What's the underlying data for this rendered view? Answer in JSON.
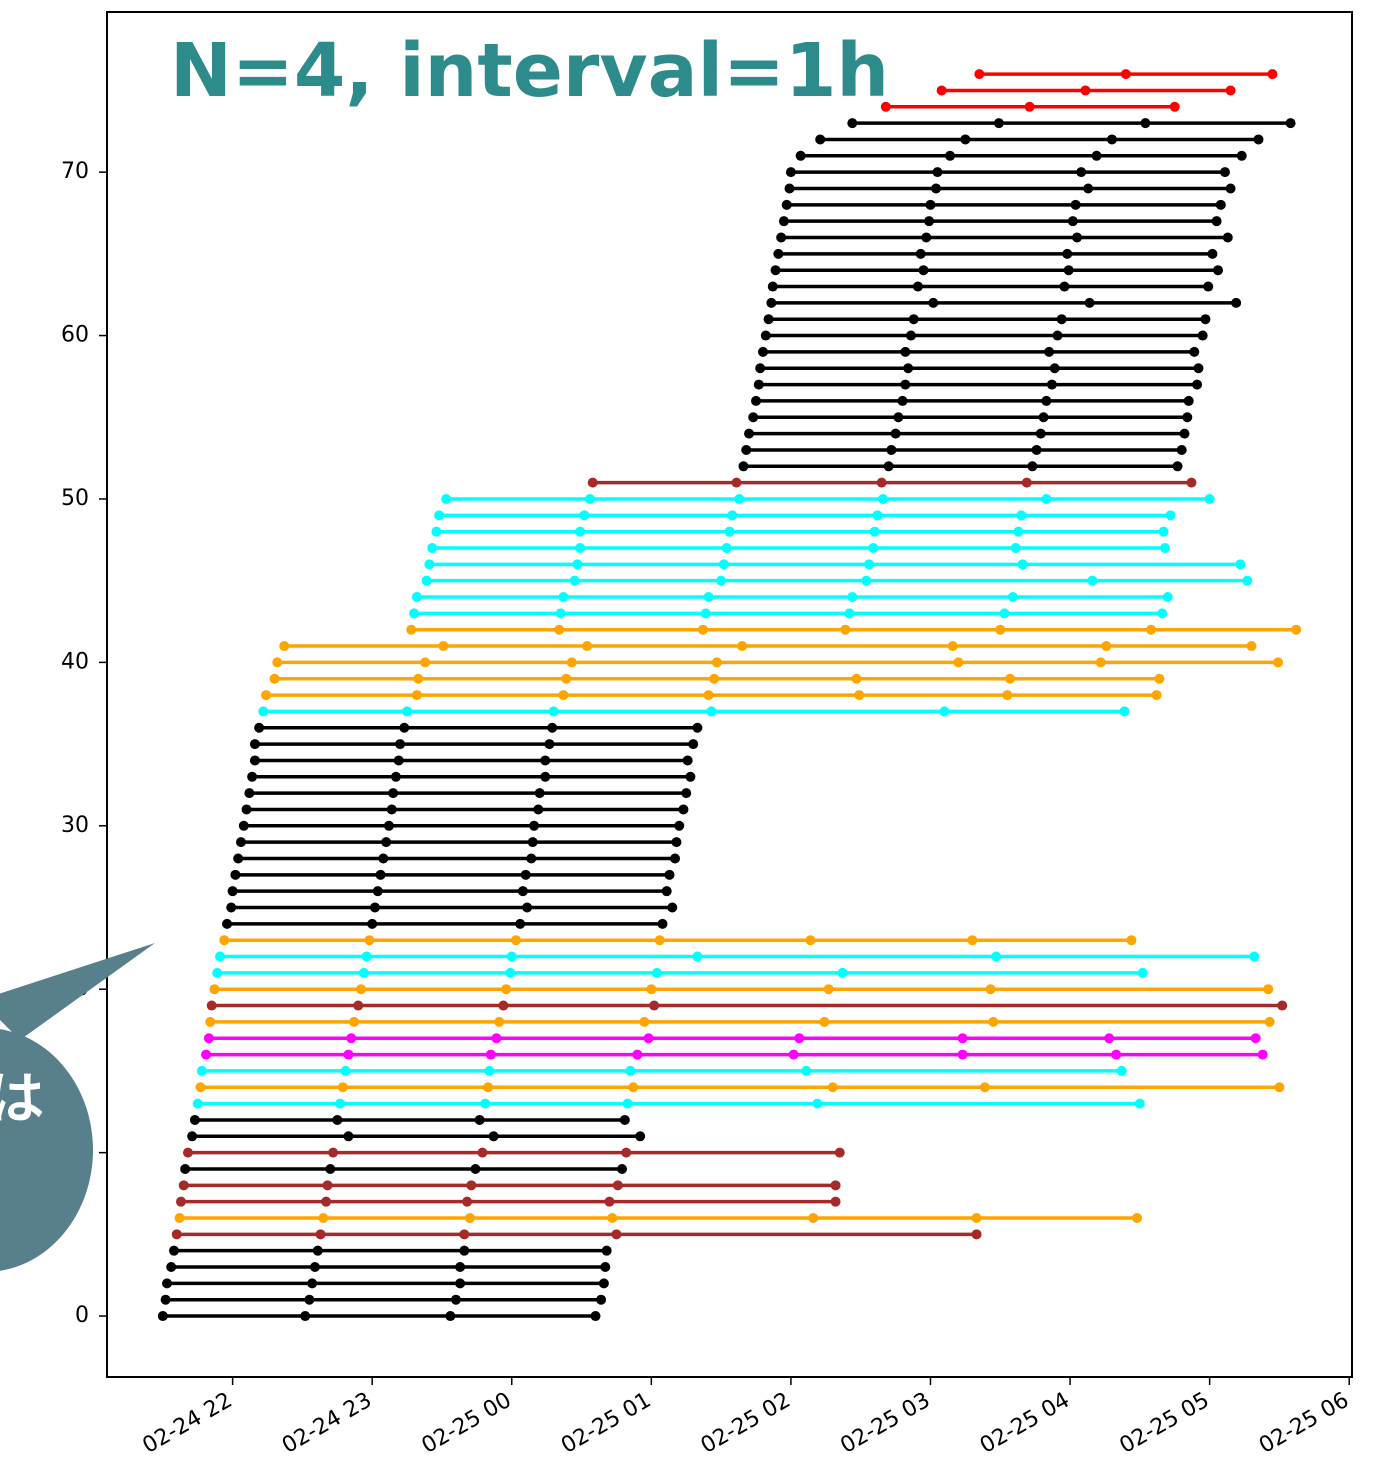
{
  "chart_data": {
    "type": "timeline",
    "title": "N=4, interval=1h",
    "xlim": [
      21.1,
      30.02
    ],
    "ylim": [
      -3.73,
      79.8
    ],
    "xticks": [
      {
        "value": 22,
        "label": "02-24 22"
      },
      {
        "value": 23,
        "label": "02-24 23"
      },
      {
        "value": 24,
        "label": "02-25 00"
      },
      {
        "value": 25,
        "label": "02-25 01"
      },
      {
        "value": 26,
        "label": "02-25 02"
      },
      {
        "value": 27,
        "label": "02-25 03"
      },
      {
        "value": 28,
        "label": "02-25 04"
      },
      {
        "value": 29,
        "label": "02-25 05"
      },
      {
        "value": 30,
        "label": "02-25 06"
      }
    ],
    "yticks": [
      0,
      10,
      20,
      30,
      40,
      50,
      60,
      70
    ],
    "series": [
      {
        "color": "#000000",
        "y": 0,
        "x": [
          21.5,
          22.52,
          23.56,
          24.6
        ]
      },
      {
        "color": "#000000",
        "y": 1,
        "x": [
          21.52,
          22.55,
          23.6,
          24.64
        ]
      },
      {
        "color": "#000000",
        "y": 2,
        "x": [
          21.53,
          22.57,
          23.63,
          24.66
        ]
      },
      {
        "color": "#000000",
        "y": 3,
        "x": [
          21.56,
          22.59,
          23.63,
          24.67
        ]
      },
      {
        "color": "#000000",
        "y": 4,
        "x": [
          21.58,
          22.61,
          23.66,
          24.68
        ]
      },
      {
        "color": "#a52a2a",
        "y": 5,
        "x": [
          21.6,
          22.63,
          23.66,
          24.75,
          27.33
        ]
      },
      {
        "color": "#ffa500",
        "y": 6,
        "x": [
          21.62,
          22.65,
          23.7,
          24.72,
          26.16,
          27.33,
          28.48
        ]
      },
      {
        "color": "#a52a2a",
        "y": 7,
        "x": [
          21.63,
          22.67,
          23.68,
          24.7,
          26.32
        ]
      },
      {
        "color": "#a52a2a",
        "y": 8,
        "x": [
          21.65,
          22.68,
          23.71,
          24.76,
          26.32
        ]
      },
      {
        "color": "#000000",
        "y": 9,
        "x": [
          21.66,
          22.7,
          23.74,
          24.79
        ]
      },
      {
        "color": "#a52a2a",
        "y": 10,
        "x": [
          21.68,
          22.72,
          23.79,
          24.82,
          26.35
        ]
      },
      {
        "color": "#000000",
        "y": 11,
        "x": [
          21.71,
          22.83,
          23.87,
          24.92
        ]
      },
      {
        "color": "#000000",
        "y": 12,
        "x": [
          21.73,
          22.75,
          23.77,
          24.81
        ]
      },
      {
        "color": "#00ffff",
        "y": 13,
        "x": [
          21.75,
          22.77,
          23.81,
          24.83,
          26.19,
          28.5
        ]
      },
      {
        "color": "#ffa500",
        "y": 14,
        "x": [
          21.77,
          22.79,
          23.83,
          24.87,
          26.3,
          27.39,
          29.5
        ]
      },
      {
        "color": "#00ffff",
        "y": 15,
        "x": [
          21.78,
          22.81,
          23.84,
          24.85,
          26.11,
          28.37
        ]
      },
      {
        "color": "#ff00ff",
        "y": 16,
        "x": [
          21.81,
          22.83,
          23.85,
          24.9,
          26.02,
          27.23,
          28.33,
          29.38
        ]
      },
      {
        "color": "#ff00ff",
        "y": 17,
        "x": [
          21.83,
          22.85,
          23.89,
          24.98,
          26.06,
          27.23,
          28.28,
          29.33
        ]
      },
      {
        "color": "#ffa500",
        "y": 18,
        "x": [
          21.84,
          22.87,
          23.91,
          24.95,
          26.24,
          27.45,
          29.43
        ]
      },
      {
        "color": "#a52a2a",
        "y": 19,
        "x": [
          21.85,
          22.9,
          23.94,
          25.02,
          29.52
        ]
      },
      {
        "color": "#ffa500",
        "y": 20,
        "x": [
          21.87,
          22.92,
          23.96,
          25.0,
          26.27,
          27.43,
          29.42
        ]
      },
      {
        "color": "#00ffff",
        "y": 21,
        "x": [
          21.89,
          22.94,
          23.99,
          25.04,
          26.37,
          28.52
        ]
      },
      {
        "color": "#00ffff",
        "y": 22,
        "x": [
          21.91,
          22.96,
          24.0,
          25.33,
          27.47,
          29.32
        ]
      },
      {
        "color": "#ffa500",
        "y": 23,
        "x": [
          21.94,
          22.98,
          24.03,
          25.06,
          26.14,
          27.3,
          28.44
        ]
      },
      {
        "color": "#000000",
        "y": 24,
        "x": [
          21.96,
          23.0,
          24.06,
          25.08
        ]
      },
      {
        "color": "#000000",
        "y": 25,
        "x": [
          21.99,
          23.02,
          24.11,
          25.15
        ]
      },
      {
        "color": "#000000",
        "y": 26,
        "x": [
          22.0,
          23.04,
          24.08,
          25.11
        ]
      },
      {
        "color": "#000000",
        "y": 27,
        "x": [
          22.02,
          23.06,
          24.1,
          25.13
        ]
      },
      {
        "color": "#000000",
        "y": 28,
        "x": [
          22.04,
          23.08,
          24.14,
          25.17
        ]
      },
      {
        "color": "#000000",
        "y": 29,
        "x": [
          22.06,
          23.1,
          24.15,
          25.18
        ]
      },
      {
        "color": "#000000",
        "y": 30,
        "x": [
          22.08,
          23.12,
          24.16,
          25.2
        ]
      },
      {
        "color": "#000000",
        "y": 31,
        "x": [
          22.1,
          23.14,
          24.19,
          25.23
        ]
      },
      {
        "color": "#000000",
        "y": 32,
        "x": [
          22.12,
          23.15,
          24.2,
          25.25
        ]
      },
      {
        "color": "#000000",
        "y": 33,
        "x": [
          22.14,
          23.17,
          24.24,
          25.28
        ]
      },
      {
        "color": "#000000",
        "y": 34,
        "x": [
          22.16,
          23.19,
          24.24,
          25.26
        ]
      },
      {
        "color": "#000000",
        "y": 35,
        "x": [
          22.16,
          23.2,
          24.27,
          25.3
        ]
      },
      {
        "color": "#000000",
        "y": 36,
        "x": [
          22.19,
          23.23,
          24.29,
          25.33
        ]
      },
      {
        "color": "#00ffff",
        "y": 37,
        "x": [
          22.22,
          23.25,
          24.3,
          25.43,
          27.1,
          28.39
        ]
      },
      {
        "color": "#ffa500",
        "y": 38,
        "x": [
          22.24,
          23.32,
          24.37,
          25.41,
          26.49,
          27.55,
          28.62
        ]
      },
      {
        "color": "#ffa500",
        "y": 39,
        "x": [
          22.3,
          23.33,
          24.39,
          25.45,
          26.47,
          27.57,
          28.64
        ]
      },
      {
        "color": "#ffa500",
        "y": 40,
        "x": [
          22.32,
          23.38,
          24.43,
          25.47,
          27.2,
          28.22,
          29.49
        ]
      },
      {
        "color": "#ffa500",
        "y": 41,
        "x": [
          22.37,
          23.51,
          24.54,
          25.65,
          27.16,
          28.26,
          29.3
        ]
      },
      {
        "color": "#ffa500",
        "y": 42,
        "x": [
          23.28,
          24.34,
          25.37,
          26.39,
          27.5,
          28.58,
          29.62
        ]
      },
      {
        "color": "#00ffff",
        "y": 43,
        "x": [
          23.3,
          24.35,
          25.39,
          26.42,
          27.53,
          28.66
        ]
      },
      {
        "color": "#00ffff",
        "y": 44,
        "x": [
          23.32,
          24.37,
          25.41,
          26.44,
          27.59,
          28.7
        ]
      },
      {
        "color": "#00ffff",
        "y": 45,
        "x": [
          23.39,
          24.45,
          25.5,
          26.54,
          28.16,
          29.27
        ]
      },
      {
        "color": "#00ffff",
        "y": 46,
        "x": [
          23.41,
          24.47,
          25.52,
          26.56,
          27.66,
          29.22
        ]
      },
      {
        "color": "#00ffff",
        "y": 47,
        "x": [
          23.43,
          24.49,
          25.54,
          26.59,
          27.61,
          28.68
        ]
      },
      {
        "color": "#00ffff",
        "y": 48,
        "x": [
          23.46,
          24.49,
          25.56,
          26.6,
          27.63,
          28.67
        ]
      },
      {
        "color": "#00ffff",
        "y": 49,
        "x": [
          23.48,
          24.52,
          25.58,
          26.62,
          27.65,
          28.72
        ]
      },
      {
        "color": "#00ffff",
        "y": 50,
        "x": [
          23.53,
          24.56,
          25.63,
          26.66,
          27.83,
          29.0
        ]
      },
      {
        "color": "#a52a2a",
        "y": 51,
        "x": [
          24.58,
          25.61,
          26.65,
          27.69,
          28.87
        ]
      },
      {
        "color": "#000000",
        "y": 52,
        "x": [
          25.66,
          26.7,
          27.73,
          28.77
        ]
      },
      {
        "color": "#000000",
        "y": 53,
        "x": [
          25.68,
          26.72,
          27.76,
          28.8
        ]
      },
      {
        "color": "#000000",
        "y": 54,
        "x": [
          25.7,
          26.75,
          27.79,
          28.82
        ]
      },
      {
        "color": "#000000",
        "y": 55,
        "x": [
          25.73,
          26.77,
          27.81,
          28.84
        ]
      },
      {
        "color": "#000000",
        "y": 56,
        "x": [
          25.75,
          26.8,
          27.83,
          28.85
        ]
      },
      {
        "color": "#000000",
        "y": 57,
        "x": [
          25.77,
          26.82,
          27.87,
          28.91
        ]
      },
      {
        "color": "#000000",
        "y": 58,
        "x": [
          25.78,
          26.84,
          27.89,
          28.92
        ]
      },
      {
        "color": "#000000",
        "y": 59,
        "x": [
          25.8,
          26.82,
          27.85,
          28.89
        ]
      },
      {
        "color": "#000000",
        "y": 60,
        "x": [
          25.82,
          26.86,
          27.91,
          28.95
        ]
      },
      {
        "color": "#000000",
        "y": 61,
        "x": [
          25.84,
          26.88,
          27.94,
          28.97
        ]
      },
      {
        "color": "#000000",
        "y": 62,
        "x": [
          25.86,
          27.02,
          28.14,
          29.19
        ]
      },
      {
        "color": "#000000",
        "y": 63,
        "x": [
          25.87,
          26.91,
          27.96,
          28.99
        ]
      },
      {
        "color": "#000000",
        "y": 64,
        "x": [
          25.89,
          26.95,
          27.99,
          29.06
        ]
      },
      {
        "color": "#000000",
        "y": 65,
        "x": [
          25.91,
          26.93,
          27.98,
          29.02
        ]
      },
      {
        "color": "#000000",
        "y": 66,
        "x": [
          25.93,
          26.97,
          28.05,
          29.13
        ]
      },
      {
        "color": "#000000",
        "y": 67,
        "x": [
          25.95,
          26.99,
          28.02,
          29.05
        ]
      },
      {
        "color": "#000000",
        "y": 68,
        "x": [
          25.97,
          27.0,
          28.04,
          29.08
        ]
      },
      {
        "color": "#000000",
        "y": 69,
        "x": [
          25.99,
          27.04,
          28.13,
          29.15
        ]
      },
      {
        "color": "#000000",
        "y": 70,
        "x": [
          26.0,
          27.05,
          28.08,
          29.11
        ]
      },
      {
        "color": "#000000",
        "y": 71,
        "x": [
          26.07,
          27.14,
          28.19,
          29.23
        ]
      },
      {
        "color": "#000000",
        "y": 72,
        "x": [
          26.21,
          27.25,
          28.3,
          29.35
        ]
      },
      {
        "color": "#000000",
        "y": 73,
        "x": [
          26.44,
          27.49,
          28.54,
          29.58
        ]
      },
      {
        "color": "#ff0000",
        "y": 74,
        "x": [
          26.68,
          27.71,
          28.75
        ]
      },
      {
        "color": "#ff0000",
        "y": 75,
        "x": [
          27.08,
          28.11,
          29.15
        ]
      },
      {
        "color": "#ff0000",
        "y": 76,
        "x": [
          27.35,
          28.4,
          29.45
        ]
      }
    ]
  },
  "overlay": {
    "text": "は"
  }
}
